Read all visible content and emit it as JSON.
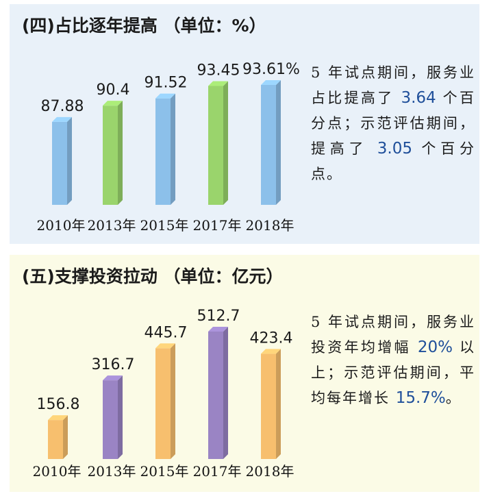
{
  "panels": [
    {
      "title": "(四)占比逐年提高 （单位：%）",
      "note": {
        "parts": [
          {
            "t": "5 年试点期间，服务业占比提高了 "
          },
          {
            "t": "3.64",
            "hl": true
          },
          {
            "t": " 个百分点；示范评估期间，提高了 "
          },
          {
            "t": "3.05",
            "hl": true
          },
          {
            "t": " 个百分点。"
          }
        ]
      }
    },
    {
      "title": "(五)支撑投资拉动 （单位：亿元）",
      "note": {
        "parts": [
          {
            "t": "5 年试点期间，服务业投资年均增幅 "
          },
          {
            "t": "20%",
            "hl": true
          },
          {
            "t": " 以上；示范评估期间，平均每年增长 "
          },
          {
            "t": "15.7%",
            "hl": true
          },
          {
            "t": "。"
          }
        ]
      }
    }
  ],
  "chart_data": [
    {
      "type": "bar",
      "title": "(四)占比逐年提高 （单位：%）",
      "categories": [
        "2010年",
        "2013年",
        "2015年",
        "2017年",
        "2018年"
      ],
      "values": [
        87.88,
        90.4,
        91.52,
        93.45,
        93.61
      ],
      "value_labels": [
        "87.88",
        "90.4",
        "91.52",
        "93.45",
        "93.61%"
      ],
      "colors": [
        "#8cc0ea",
        "#9ad46c",
        "#8cc0ea",
        "#9ad46c",
        "#8cc0ea"
      ],
      "ylim": [
        75,
        95
      ]
    },
    {
      "type": "bar",
      "title": "(五)支撑投资拉动 （单位：亿元）",
      "categories": [
        "2010年",
        "2013年",
        "2015年",
        "2017年",
        "2018年"
      ],
      "values": [
        156.8,
        316.7,
        445.7,
        512.7,
        423.4
      ],
      "value_labels": [
        "156.8",
        "316.7",
        "445.7",
        "512.7",
        "423.4"
      ],
      "colors": [
        "#f7bf6e",
        "#9a84c4",
        "#f7bf6e",
        "#9a84c4",
        "#f7bf6e"
      ],
      "ylim": [
        0,
        600
      ]
    }
  ]
}
